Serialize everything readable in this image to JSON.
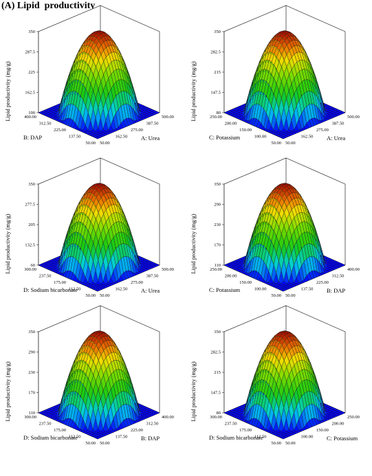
{
  "figure": {
    "title": "(A) Lipid  productivity"
  },
  "chart_data": [
    {
      "type": "surface",
      "zlabel": "Lipid productivity (mg/g)",
      "zticks": [
        "100",
        "162.5",
        "225",
        "287.5",
        "350"
      ],
      "xlabel": "A: Urea",
      "xticks": [
        "50.00",
        "162.50",
        "275.00",
        "387.50",
        "500.00"
      ],
      "ylabel": "B: DAP",
      "yticks": [
        "50.00",
        "137.50",
        "225.00",
        "312.50",
        "400.00"
      ]
    },
    {
      "type": "surface",
      "zlabel": "Lipid productivity (mg/g)",
      "zticks": [
        "80",
        "147.5",
        "215",
        "282.5",
        "350"
      ],
      "xlabel": "A: Urea",
      "xticks": [
        "50.00",
        "162.50",
        "275.00",
        "387.50",
        "500.00"
      ],
      "ylabel": "C: Potassium",
      "yticks": [
        "50.00",
        "100.00",
        "150.00",
        "200.00",
        "250.00"
      ]
    },
    {
      "type": "surface",
      "zlabel": "Lipid productivity (mg/g)",
      "zticks": [
        "60",
        "132.5",
        "205",
        "277.5",
        "350"
      ],
      "xlabel": "A: Urea",
      "xticks": [
        "50.00",
        "162.50",
        "275.00",
        "387.50",
        "500.00"
      ],
      "ylabel": "D: Sodium bicarbonate",
      "yticks": [
        "50.00",
        "112.50",
        "175.00",
        "237.50",
        "300.00"
      ]
    },
    {
      "type": "surface",
      "zlabel": "Lipid productivity (mg/g)",
      "zticks": [
        "110",
        "170",
        "230",
        "290",
        "350"
      ],
      "xlabel": "B: DAP",
      "xticks": [
        "50.00",
        "137.50",
        "225.00",
        "312.50",
        "400.00"
      ],
      "ylabel": "C: Potassium",
      "yticks": [
        "50.00",
        "100.00",
        "150.00",
        "200.00",
        "250.00"
      ]
    },
    {
      "type": "surface",
      "zlabel": "Lipid productivity (mg/g)",
      "zticks": [
        "110",
        "170",
        "230",
        "290",
        "350"
      ],
      "xlabel": "B: DAP",
      "xticks": [
        "50.00",
        "137.50",
        "225.00",
        "312.50",
        "400.00"
      ],
      "ylabel": "D: Sodium bicarbonate",
      "yticks": [
        "50.00",
        "112.50",
        "175.00",
        "237.50",
        "300.00"
      ]
    },
    {
      "type": "surface",
      "zlabel": "Lipid productivity (mg/g)",
      "zticks": [
        "80",
        "147.5",
        "215",
        "282.5",
        "350"
      ],
      "xlabel": "C: Potassium",
      "xticks": [
        "50.00",
        "100.00",
        "150.00",
        "200.00",
        "250.00"
      ],
      "ylabel": "D: Sodium bicarbonate",
      "yticks": [
        "50.00",
        "112.50",
        "175.00",
        "237.50",
        "300.00"
      ]
    }
  ]
}
